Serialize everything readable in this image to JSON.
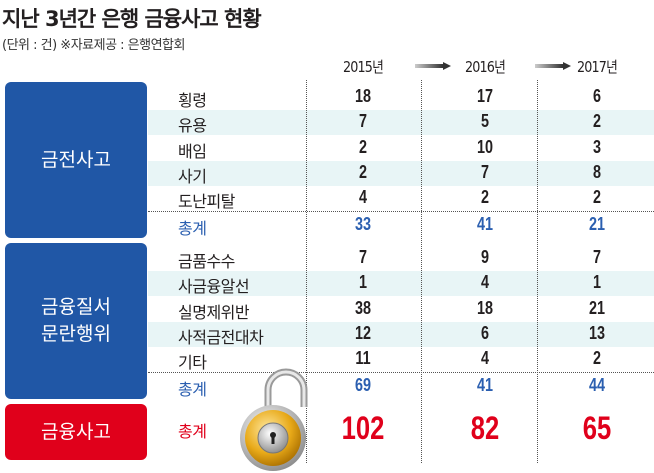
{
  "title": "지난 3년간 은행 금융사고 현황",
  "subtitle": "(단위 : 건)  ※자료제공 : 은행연합회",
  "colors": {
    "blue": "#2057a6",
    "red": "#e0001b",
    "band": "#e8f5f6",
    "total_blue": "#2b5fb0"
  },
  "chart_data": {
    "type": "table",
    "title": "지난 3년간 은행 금융사고 현황",
    "unit": "(단위 : 건)",
    "columns": [
      "2015년",
      "2016년",
      "2017년"
    ],
    "groups": [
      {
        "name": "금전사고",
        "rows": [
          {
            "label": "횡령",
            "values": [
              18,
              17,
              6
            ]
          },
          {
            "label": "유용",
            "values": [
              7,
              5,
              2
            ]
          },
          {
            "label": "배임",
            "values": [
              2,
              10,
              3
            ]
          },
          {
            "label": "사기",
            "values": [
              2,
              7,
              8
            ]
          },
          {
            "label": "도난피탈",
            "values": [
              4,
              2,
              2
            ]
          }
        ],
        "total": {
          "label": "총계",
          "values": [
            33,
            41,
            21
          ]
        }
      },
      {
        "name": "금융질서\n문란행위",
        "rows": [
          {
            "label": "금품수수",
            "values": [
              7,
              9,
              7
            ]
          },
          {
            "label": "사금융알선",
            "values": [
              1,
              4,
              1
            ]
          },
          {
            "label": "실명제위반",
            "values": [
              38,
              18,
              21
            ]
          },
          {
            "label": "사적금전대차",
            "values": [
              12,
              6,
              13
            ]
          },
          {
            "label": "기타",
            "values": [
              11,
              4,
              2
            ]
          }
        ],
        "total": {
          "label": "총계",
          "values": [
            69,
            41,
            44
          ]
        }
      }
    ],
    "grand_total": {
      "name": "금융사고",
      "label": "총계",
      "values": [
        102,
        82,
        65
      ]
    }
  }
}
